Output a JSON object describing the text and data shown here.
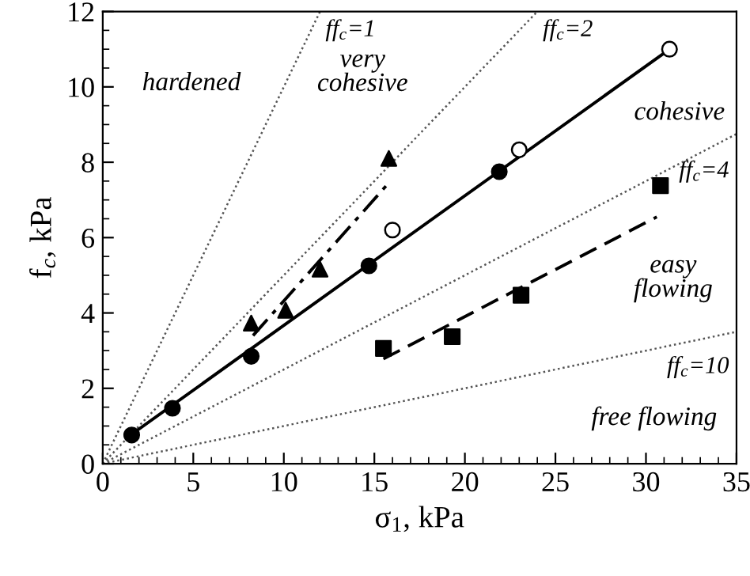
{
  "chart_data": {
    "type": "scatter",
    "xlabel": "σ$_{1}$, kPa",
    "ylabel": "f$_{c}$, kPa",
    "xlim": [
      0,
      35
    ],
    "ylim": [
      0,
      12
    ],
    "xticks": [
      0,
      5,
      10,
      15,
      20,
      25,
      30,
      35
    ],
    "yticks": [
      0,
      2,
      4,
      6,
      8,
      10,
      12
    ],
    "grid": false,
    "legend": false,
    "series": [
      {
        "name": "ff$_{c}$=1",
        "type": "line",
        "x": [
          0,
          12
        ],
        "values": [
          0,
          12
        ],
        "color": "#555555",
        "line_style": "dotted",
        "marker": "none"
      },
      {
        "name": "ff$_{c}$=2",
        "type": "line",
        "x": [
          0,
          24
        ],
        "values": [
          0,
          12
        ],
        "color": "#555555",
        "line_style": "dotted",
        "marker": "none"
      },
      {
        "name": "ff$_{c}$=4",
        "type": "line",
        "x": [
          0,
          35
        ],
        "values": [
          0,
          8.75
        ],
        "color": "#555555",
        "line_style": "dotted",
        "marker": "none"
      },
      {
        "name": "ff$_{c}$=10",
        "type": "line",
        "x": [
          0,
          35
        ],
        "values": [
          0,
          3.5
        ],
        "color": "#555555",
        "line_style": "dotted",
        "marker": "none"
      },
      {
        "type": "line",
        "x": [
          1.6,
          31.3
        ],
        "values": [
          0.78,
          11.0
        ],
        "color": "#000000",
        "line_style": "solid",
        "marker": "none"
      },
      {
        "type": "line",
        "x": [
          8.3,
          15.7
        ],
        "values": [
          3.4,
          7.4
        ],
        "color": "#000000",
        "line_style": "dashdot",
        "marker": "none"
      },
      {
        "type": "line",
        "x": [
          15.5,
          30.6
        ],
        "values": [
          2.78,
          6.55
        ],
        "color": "#000000",
        "line_style": "dashed",
        "marker": "none"
      },
      {
        "x": [
          1.6,
          3.85,
          8.2,
          14.7,
          21.9
        ],
        "values": [
          0.76,
          1.47,
          2.85,
          5.25,
          7.75
        ],
        "color": "#000000",
        "marker": "circle"
      },
      {
        "x": [
          16.0,
          23.0,
          31.3
        ],
        "values": [
          6.2,
          8.33,
          11.0
        ],
        "color": "#ffffff",
        "marker": "circle"
      },
      {
        "x": [
          8.2,
          10.1,
          12.0,
          15.8
        ],
        "values": [
          3.73,
          4.07,
          5.16,
          8.1
        ],
        "color": "#000000",
        "marker": "triangle"
      },
      {
        "x": [
          15.5,
          19.3,
          23.1,
          30.8
        ],
        "values": [
          3.06,
          3.37,
          4.47,
          7.38
        ],
        "color": "#000000",
        "marker": "square"
      }
    ],
    "annotations": [
      "hardened",
      "very\ncohesive",
      "cohesive",
      "easy\nflowing",
      "free flowing"
    ]
  }
}
